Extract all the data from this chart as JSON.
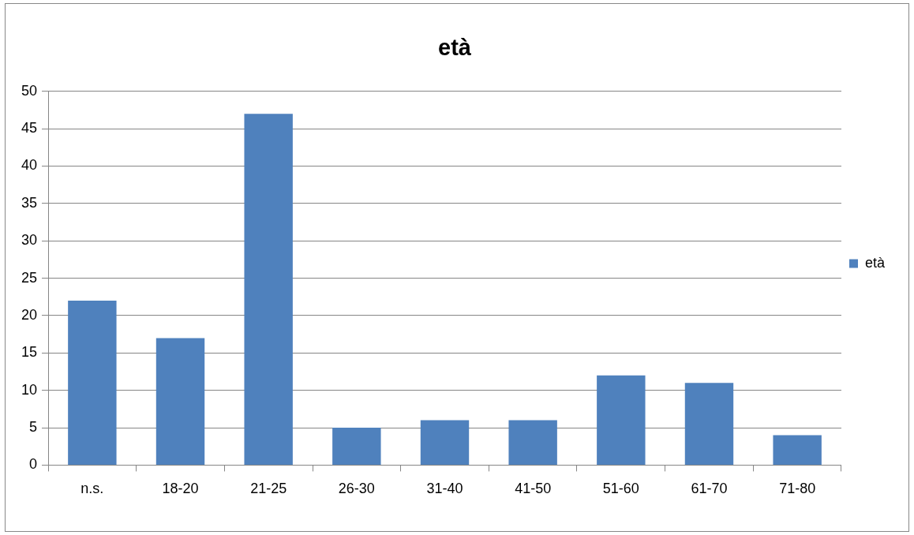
{
  "chart_data": {
    "type": "bar",
    "title": "età",
    "categories": [
      "n.s.",
      "18-20",
      "21-25",
      "26-30",
      "31-40",
      "41-50",
      "51-60",
      "61-70",
      "71-80"
    ],
    "series": [
      {
        "name": "età",
        "color": "#4f81bd",
        "values": [
          22,
          17,
          47,
          5,
          6,
          6,
          12,
          11,
          4
        ]
      }
    ],
    "ylim": [
      0,
      50
    ],
    "yticks": [
      0,
      5,
      10,
      15,
      20,
      25,
      30,
      35,
      40,
      45,
      50
    ],
    "grid": "y",
    "legend": "right"
  }
}
